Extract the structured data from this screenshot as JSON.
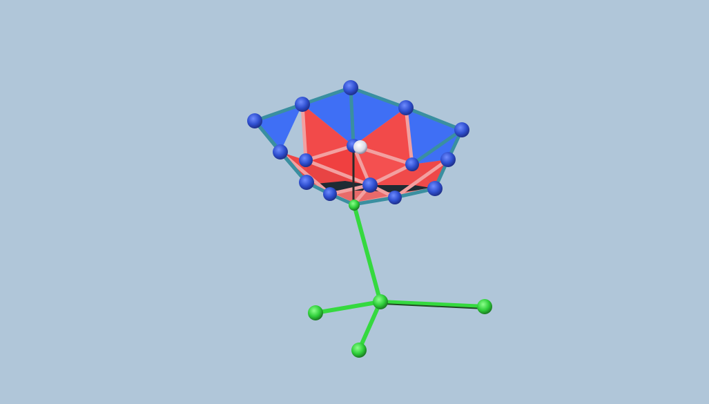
{
  "scene": {
    "background_color": "#b0c6d9",
    "object": "3d-molecular-flower-model",
    "colors": {
      "blue_face": "#3f6ff5",
      "red_face": "#f24a4a",
      "pink_edge": "#f2a0a0",
      "teal_edge": "#3a8fa0",
      "dark_inner": "#1f2b33",
      "blue_node": "#3a5bd8",
      "green_node": "#3fd84f",
      "green_rod": "#35d93f",
      "center_node": "#e6e6ee"
    },
    "icons": {
      "blue_node": "sphere-icon",
      "green_node": "sphere-icon",
      "center_node": "sphere-icon"
    }
  }
}
